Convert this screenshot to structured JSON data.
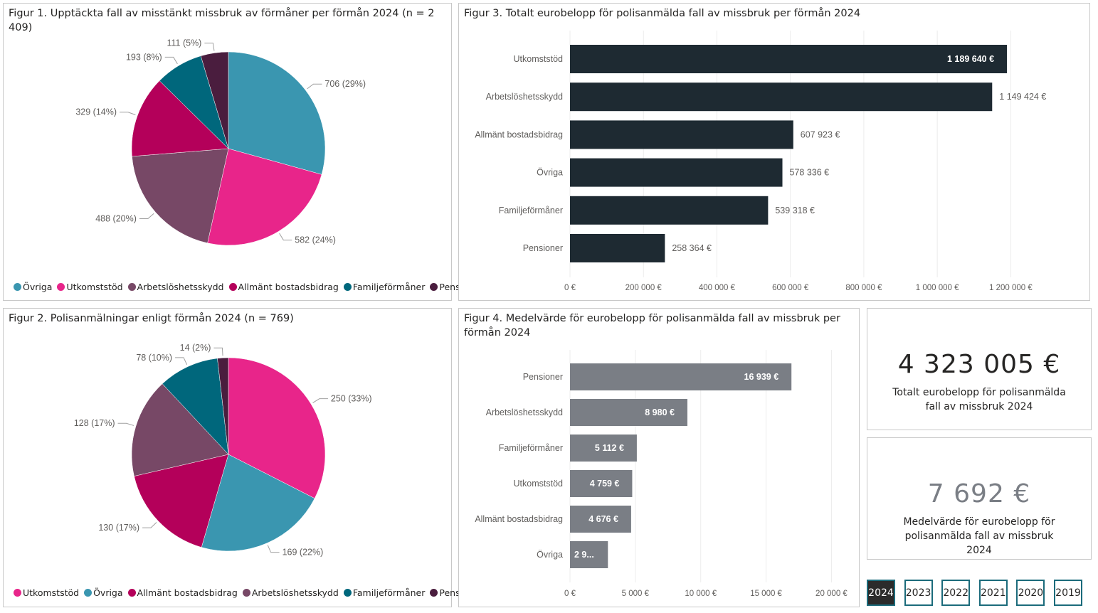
{
  "colors": {
    "Övriga": "#3a96b0",
    "Utkomststöd": "#e8258a",
    "Arbetslöshetsskydd": "#774866",
    "Allmänt bostadsbidrag": "#b4005a",
    "Familjeförmåner": "#00677c",
    "Pensioner": "#4a1d3e",
    "bar_dark": "#1e2a32",
    "bar_grey": "#7a7e85",
    "year_border": "#1b6b7b"
  },
  "kpis": {
    "total": {
      "value": "4 323 005 €",
      "caption": "Totalt eurobelopp för polisanmälda fall av missbruk 2024"
    },
    "average": {
      "value": "7 692 €",
      "caption": "Medelvärde för eurobelopp för polisanmälda fall av missbruk 2024"
    }
  },
  "year_filter": {
    "selected": "2024",
    "options": [
      "2024",
      "2023",
      "2022",
      "2021",
      "2020",
      "2019"
    ]
  },
  "chart_data": [
    {
      "id": "fig1",
      "type": "pie",
      "title": "Figur 1. Upptäckta fall av misstänkt missbruk av förmåner per förmån 2024 (n = 2 409)",
      "legend_position": "bottom-left",
      "slices": [
        {
          "name": "Övriga",
          "value": 706,
          "label": "706 (29%)"
        },
        {
          "name": "Utkomststöd",
          "value": 582,
          "label": "582 (24%)"
        },
        {
          "name": "Arbetslöshetsskydd",
          "value": 488,
          "label": "488 (20%)"
        },
        {
          "name": "Allmänt bostadsbidrag",
          "value": 329,
          "label": "329 (14%)"
        },
        {
          "name": "Familjeförmåner",
          "value": 193,
          "label": "193 (8%)"
        },
        {
          "name": "Pensioner",
          "value": 111,
          "label": "111 (5%)"
        }
      ]
    },
    {
      "id": "fig2",
      "type": "pie",
      "title": "Figur 2. Polisanmälningar enligt förmån 2024 (n = 769)",
      "legend_position": "bottom-left",
      "slices": [
        {
          "name": "Utkomststöd",
          "value": 250,
          "label": "250 (33%)"
        },
        {
          "name": "Övriga",
          "value": 169,
          "label": "169 (22%)"
        },
        {
          "name": "Allmänt bostadsbidrag",
          "value": 130,
          "label": "130 (17%)"
        },
        {
          "name": "Arbetslöshetsskydd",
          "value": 128,
          "label": "128 (17%)"
        },
        {
          "name": "Familjeförmåner",
          "value": 78,
          "label": "78 (10%)"
        },
        {
          "name": "Pensioner",
          "value": 14,
          "label": "14 (2%)"
        }
      ]
    },
    {
      "id": "fig3",
      "type": "bar",
      "orientation": "horizontal",
      "title": "Figur 3. Totalt eurobelopp för polisanmälda fall av missbruk per förmån 2024",
      "categories": [
        "Utkomststöd",
        "Arbetslöshetsskydd",
        "Allmänt bostadsbidrag",
        "Övriga",
        "Familjeförmåner",
        "Pensioner"
      ],
      "values": [
        1189640,
        1149424,
        607923,
        578336,
        539318,
        258364
      ],
      "value_labels": [
        "1 189 640 €",
        "1 149 424 €",
        "607 923 €",
        "578 336 €",
        "539 318 €",
        "258 364 €"
      ],
      "xlim": [
        0,
        1300000
      ],
      "xticks": [
        0,
        200000,
        400000,
        600000,
        800000,
        1000000,
        1200000
      ],
      "xtick_labels": [
        "0 €",
        "200 000 €",
        "400 000 €",
        "600 000 €",
        "800 000 €",
        "1 000 000 €",
        "1 200 000 €"
      ],
      "grid": true
    },
    {
      "id": "fig4",
      "type": "bar",
      "orientation": "horizontal",
      "title": "Figur 4. Medelvärde för eurobelopp för polisanmälda fall av missbruk per förmån 2024",
      "categories": [
        "Pensioner",
        "Arbetslöshetsskydd",
        "Familjeförmåner",
        "Utkomststöd",
        "Allmänt bostadsbidrag",
        "Övriga"
      ],
      "values": [
        16939,
        8980,
        5112,
        4759,
        4676,
        2900
      ],
      "value_labels": [
        "16 939 €",
        "8 980 €",
        "5 112 €",
        "4 759 €",
        "4 676 €",
        "2 9..."
      ],
      "xlim": [
        0,
        21500
      ],
      "xticks": [
        0,
        5000,
        10000,
        15000,
        20000
      ],
      "xtick_labels": [
        "0 €",
        "5 000 €",
        "10 000 €",
        "15 000 €",
        "20 000 €"
      ],
      "grid": true
    }
  ]
}
